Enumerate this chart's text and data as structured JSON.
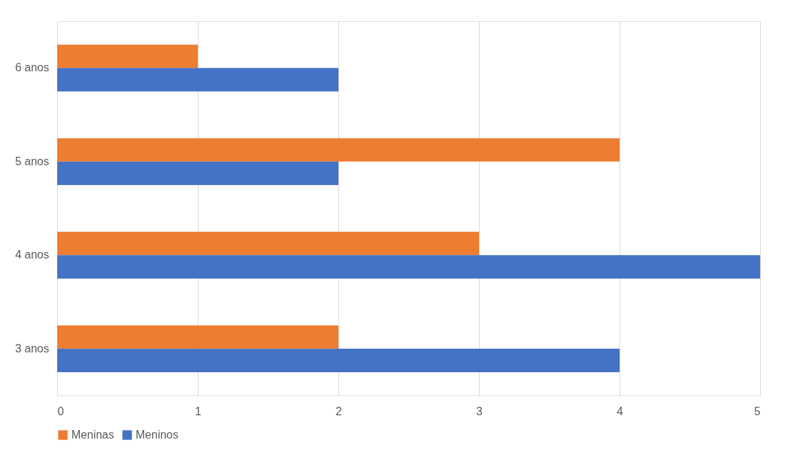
{
  "chart_data": {
    "type": "bar",
    "orientation": "horizontal",
    "categories": [
      "6 anos",
      "5 anos",
      "4 anos",
      "3 anos"
    ],
    "series": [
      {
        "name": "Meninas",
        "color": "#ed7d31",
        "values": [
          1,
          4,
          3,
          2
        ]
      },
      {
        "name": "Meninos",
        "color": "#4472c4",
        "values": [
          2,
          2,
          5,
          4
        ]
      }
    ],
    "xlim": [
      0,
      5
    ],
    "xticks": [
      0,
      1,
      2,
      3,
      4,
      5
    ],
    "grid": "x",
    "legend": "bottom"
  }
}
